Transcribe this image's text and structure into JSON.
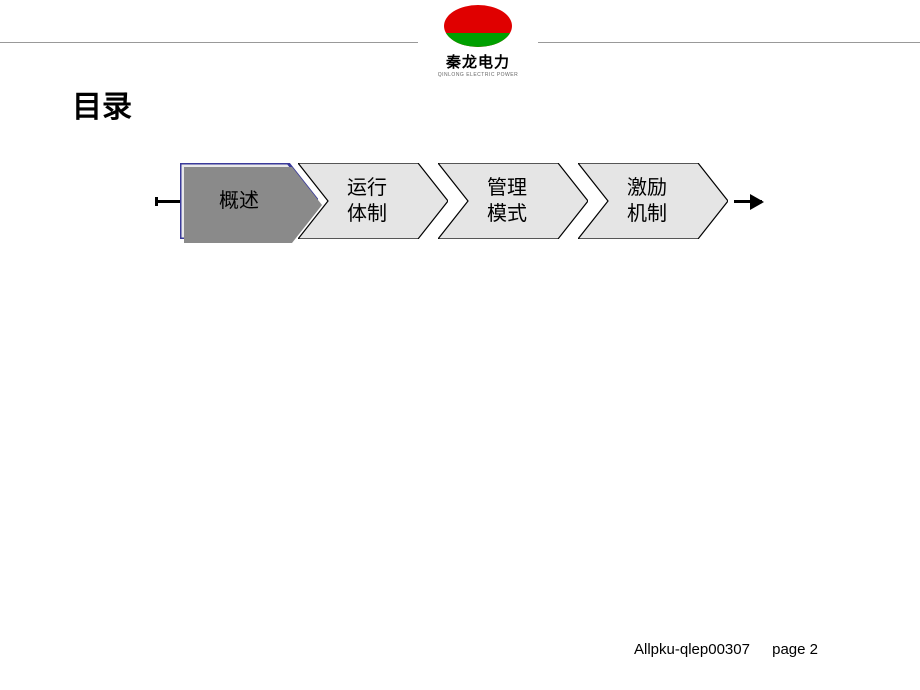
{
  "logo": {
    "text": "秦龙电力",
    "subtext": "QINLONG ELECTRIC POWER"
  },
  "title": "目录",
  "flow": {
    "items": [
      {
        "label": "概述"
      },
      {
        "label": "运行\n体制"
      },
      {
        "label": "管理\n模式"
      },
      {
        "label": "激励\n机制"
      }
    ],
    "style": {
      "fill_normal": "#e5e5e5",
      "fill_active": "#e9e9e9",
      "stroke_normal": "#000000",
      "stroke_active": "#3a3a9a",
      "shadow_color": "#8a8a8a"
    }
  },
  "footer": {
    "doc_id": "Allpku-qlep00307",
    "page_label": "page 2"
  }
}
